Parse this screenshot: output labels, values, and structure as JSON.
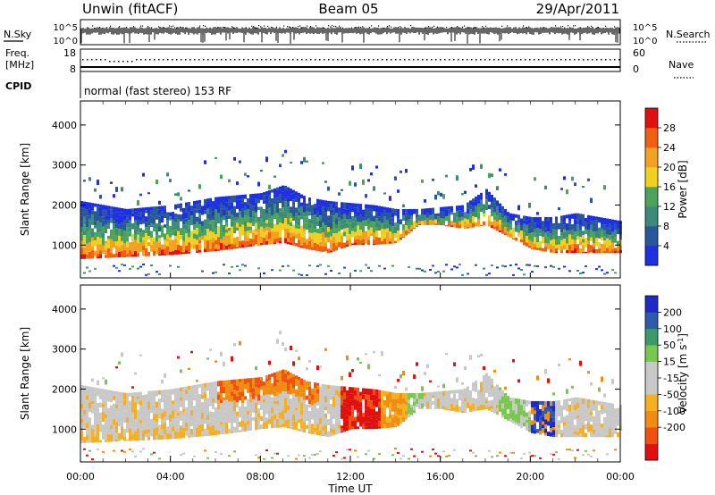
{
  "header": {
    "station": "Unwin (fitACF)",
    "beam": "Beam 05",
    "date": "29/Apr/2011"
  },
  "status_panels": {
    "nsky_label": "N.Sky",
    "nsearch_label": "N.Search",
    "noise_ticks": [
      "10^5",
      "10^0"
    ],
    "freq_label_1": "Freq.",
    "freq_label_2": "[MHz]",
    "freq_ticks": [
      "18",
      "8"
    ],
    "nave_label": "Nave",
    "nave_ticks": [
      "60",
      "0"
    ],
    "cpid_label": "CPID",
    "cpid_text": "normal (fast stereo) 153 RF"
  },
  "axes": {
    "xlabel": "Time UT",
    "x_ticks": [
      "00:00",
      "04:00",
      "08:00",
      "12:00",
      "16:00",
      "20:00",
      "00:00"
    ],
    "xlim_hours": [
      0,
      24
    ],
    "ylabel": "Slant Range [km]",
    "y_ticks": [
      1000,
      2000,
      3000,
      4000
    ],
    "ylim_km": [
      180,
      4600
    ]
  },
  "colorbars": {
    "power": {
      "label": "Power [dB]",
      "ticks": [
        "4",
        "8",
        "12",
        "16",
        "20",
        "24",
        "28"
      ],
      "colors": [
        "#1e30e0",
        "#28579b",
        "#3c8a7a",
        "#4aa55a",
        "#f2d020",
        "#f4a020",
        "#f06010",
        "#e01010"
      ]
    },
    "velocity": {
      "label": "Velocity [m s",
      "label_sup": "-1",
      "label_end": "]",
      "ticks": [
        "200",
        "100",
        "50",
        "15",
        "-15",
        "-50",
        "-100",
        "-200"
      ],
      "colors": [
        "#e01010",
        "#f25010",
        "#f08c10",
        "#f4b020",
        "#c8c8c8",
        "#c8c8c8",
        "#78c850",
        "#3c9a6a",
        "#2e5ab0",
        "#1e2ac8"
      ]
    }
  },
  "chart_data": [
    {
      "type": "heatmap",
      "name": "Power",
      "x_units": "hours UT",
      "y_units": "km",
      "echo_band": {
        "hours": [
          0,
          2,
          4,
          6,
          8,
          9,
          10,
          11,
          12,
          13,
          14,
          15,
          16,
          17,
          18,
          19,
          20,
          21,
          22,
          23,
          24
        ],
        "bottom_km": [
          650,
          700,
          750,
          850,
          1000,
          1050,
          900,
          800,
          1000,
          1000,
          1050,
          1500,
          1500,
          1400,
          1500,
          1200,
          900,
          800,
          800,
          800,
          800
        ],
        "top_km": [
          2100,
          1900,
          2000,
          2200,
          2300,
          2500,
          2200,
          2100,
          2050,
          2000,
          1900,
          1900,
          1950,
          2000,
          2400,
          1800,
          1700,
          1700,
          1800,
          1700,
          1600
        ]
      },
      "range_km": [
        180,
        4600
      ]
    },
    {
      "type": "heatmap",
      "name": "Velocity",
      "x_units": "hours UT",
      "y_units": "km",
      "echo_band": {
        "hours": [
          0,
          2,
          4,
          6,
          8,
          9,
          10,
          11,
          12,
          13,
          14,
          15,
          16,
          17,
          18,
          19,
          20,
          21,
          22,
          23,
          24
        ],
        "bottom_km": [
          650,
          700,
          750,
          850,
          1000,
          1050,
          900,
          800,
          1000,
          1000,
          1050,
          1500,
          1500,
          1400,
          1500,
          1200,
          900,
          800,
          800,
          800,
          800
        ],
        "top_km": [
          2100,
          1900,
          2000,
          2200,
          2300,
          2500,
          2200,
          2100,
          2050,
          2000,
          1900,
          1900,
          1950,
          2000,
          2400,
          1800,
          1700,
          1700,
          1800,
          1700,
          1600
        ]
      },
      "range_km": [
        180,
        4600
      ]
    }
  ]
}
